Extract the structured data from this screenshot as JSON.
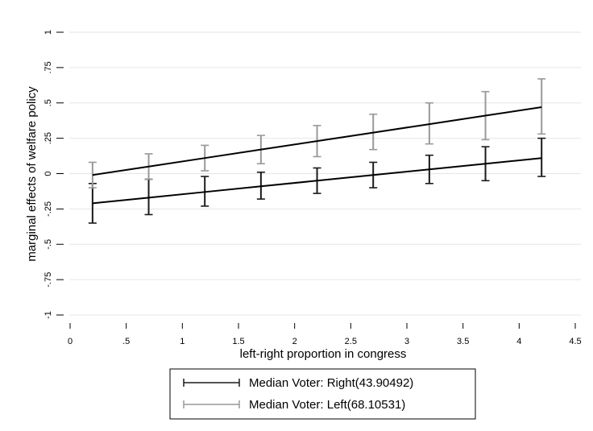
{
  "chart_data": {
    "type": "line",
    "title": "",
    "xlabel": "left-right proportion in congress",
    "ylabel": "marginal effects of welfare policy",
    "xlim": [
      0,
      4.5
    ],
    "ylim": [
      -1,
      1
    ],
    "x_ticks": [
      0,
      0.5,
      1,
      1.5,
      2,
      2.5,
      3,
      3.5,
      4,
      4.5
    ],
    "x_tick_labels": [
      "0",
      ".5",
      "1",
      "1.5",
      "2",
      "2.5",
      "3",
      "3.5",
      "4",
      "4.5"
    ],
    "y_ticks": [
      -1,
      -0.75,
      -0.5,
      -0.25,
      0,
      0.25,
      0.5,
      0.75,
      1
    ],
    "y_tick_labels": [
      "-1",
      "-.75",
      "-.5",
      "-.25",
      "0",
      ".25",
      ".5",
      ".75",
      "1"
    ],
    "grid": true,
    "legend_position": "bottom",
    "x": [
      0.2,
      0.7,
      1.2,
      1.7,
      2.2,
      2.7,
      3.2,
      3.7,
      4.2
    ],
    "series": [
      {
        "name": "Median Voter: Right(43.90492)",
        "color": "#1a1a1a",
        "values": [
          -0.21,
          -0.17,
          -0.13,
          -0.09,
          -0.05,
          -0.01,
          0.03,
          0.07,
          0.11
        ],
        "ci_lower": [
          -0.35,
          -0.29,
          -0.23,
          -0.18,
          -0.14,
          -0.1,
          -0.07,
          -0.05,
          -0.02
        ],
        "ci_upper": [
          -0.07,
          -0.04,
          -0.02,
          0.01,
          0.04,
          0.08,
          0.13,
          0.19,
          0.25
        ]
      },
      {
        "name": "Median Voter: Left(68.10531)",
        "color": "#999999",
        "values": [
          -0.01,
          0.05,
          0.11,
          0.17,
          0.23,
          0.29,
          0.35,
          0.41,
          0.47
        ],
        "ci_lower": [
          -0.1,
          -0.04,
          0.02,
          0.07,
          0.12,
          0.17,
          0.21,
          0.24,
          0.28
        ],
        "ci_upper": [
          0.08,
          0.14,
          0.2,
          0.27,
          0.34,
          0.42,
          0.5,
          0.58,
          0.67
        ]
      }
    ]
  }
}
